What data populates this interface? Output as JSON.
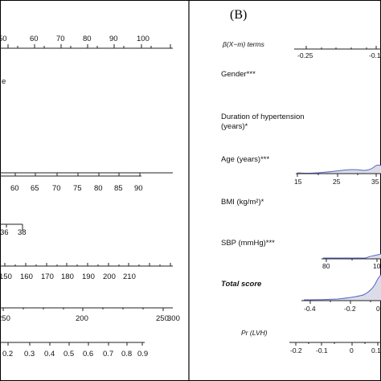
{
  "panel_b_letter": "(B)",
  "left_panel": {
    "row1": {
      "ticks": [
        "50",
        "60",
        "70",
        "80",
        "90",
        "100"
      ]
    },
    "row1_fragment": "e",
    "row3": {
      "ticks": [
        "60",
        "65",
        "70",
        "75",
        "80",
        "85",
        "90"
      ]
    },
    "row4": {
      "ticks": [
        "36",
        "38"
      ]
    },
    "row5": {
      "ticks": [
        "150",
        "160",
        "170",
        "180",
        "190",
        "200",
        "210"
      ]
    },
    "row6": {
      "ticks": [
        "250",
        "200",
        "250",
        "300"
      ]
    },
    "row7": {
      "ticks": [
        "0.2",
        "0.3",
        "0.4",
        "0.5",
        "0.6",
        "0.7",
        "0.8",
        "0.9"
      ]
    }
  },
  "right_panel": {
    "beta_label": "β(X−m) terms",
    "beta_ticks": [
      "-0.25",
      "-0.1"
    ],
    "gender_label": "Gender***",
    "duration_label_1": "Duration of hypertension",
    "duration_label_2": "(years)*",
    "age_label": "Age (years)***",
    "age_ticks": [
      "15",
      "25",
      "35"
    ],
    "bmi_label": "BMI (kg/m²)*",
    "sbp_label": "SBP (mmHg)***",
    "sbp_ticks": [
      "80",
      "10"
    ],
    "total_label": "Total score",
    "total_ticks": [
      "-0.4",
      "-0.2",
      "0"
    ],
    "pr_label": "Pr (LVH)",
    "pr_ticks": [
      "-0.2",
      "-0.1",
      "0",
      "0.1"
    ]
  },
  "colors": {
    "density_line": "#5566cc",
    "density_fill": "#dcdce8",
    "axis": "#222222"
  }
}
